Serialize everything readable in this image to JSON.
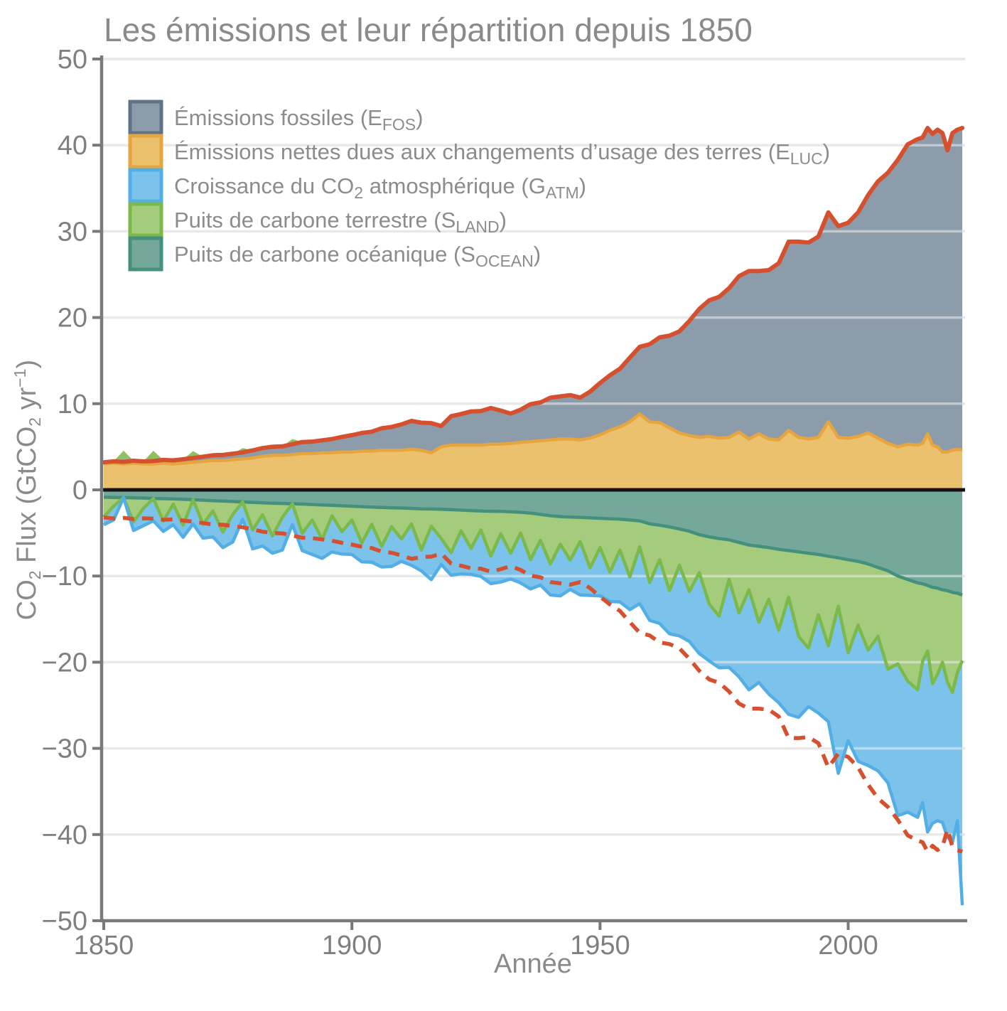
{
  "figure": {
    "background": "#ffffff"
  },
  "chart_data": {
    "type": "area",
    "title": "Les émissions et leur répartition depuis 1850",
    "xlabel": "Année",
    "ylabel_segments": [
      {
        "t": "CO"
      },
      {
        "sub": "2"
      },
      {
        "t": " Flux (GtCO"
      },
      {
        "sub": "2"
      },
      {
        "t": " yr"
      },
      {
        "sup": "−1"
      },
      {
        "t": ")"
      }
    ],
    "x_ticks": [
      {
        "v": 1850,
        "label": "1850"
      },
      {
        "v": 1900,
        "label": "1900"
      },
      {
        "v": 1950,
        "label": "1950"
      },
      {
        "v": 2000,
        "label": "2000"
      }
    ],
    "y_ticks": [
      {
        "v": 50,
        "label": "50"
      },
      {
        "v": 40,
        "label": "40"
      },
      {
        "v": 30,
        "label": "30"
      },
      {
        "v": 20,
        "label": "20"
      },
      {
        "v": 10,
        "label": "10"
      },
      {
        "v": 0,
        "label": "0"
      },
      {
        "v": -10,
        "label": "−10"
      },
      {
        "v": -20,
        "label": "−20"
      },
      {
        "v": -30,
        "label": "−30"
      },
      {
        "v": -40,
        "label": "−40"
      },
      {
        "v": -50,
        "label": "−50"
      }
    ],
    "xlim": [
      1850,
      2023
    ],
    "ylim": [
      -50,
      50
    ],
    "grid": "horizontal-major",
    "legend_position": "inside-top-left",
    "units": "GtCO2 yr-1",
    "stacking": "emissions above zero (E_LUC then E_FOS); partition below zero (S_OCEAN then S_LAND then G_ATM); negative sink/growth years flipped above the total line",
    "derived_lines": {
      "solid_top": "e_fos + e_luc",
      "dashed_bottom": "-(e_fos + e_luc)",
      "color": "#d5502e"
    },
    "colors": {
      "grid": "#e5e5e5",
      "grid_overlay": "rgba(236,236,236,0.55)",
      "axis": "#7a7a7a",
      "title_text": "#8a8a8a",
      "tick_text": "#7f7f7f",
      "zero_line": "#141414",
      "total_line": "#d5502e"
    },
    "years": [
      1850,
      1852,
      1854,
      1856,
      1858,
      1860,
      1862,
      1864,
      1866,
      1868,
      1870,
      1872,
      1874,
      1876,
      1878,
      1880,
      1882,
      1884,
      1886,
      1888,
      1890,
      1892,
      1894,
      1896,
      1898,
      1900,
      1902,
      1904,
      1906,
      1908,
      1910,
      1912,
      1914,
      1916,
      1918,
      1920,
      1922,
      1924,
      1926,
      1928,
      1930,
      1932,
      1934,
      1936,
      1938,
      1940,
      1942,
      1944,
      1946,
      1948,
      1950,
      1952,
      1954,
      1956,
      1958,
      1960,
      1962,
      1964,
      1966,
      1968,
      1970,
      1972,
      1974,
      1976,
      1978,
      1980,
      1982,
      1984,
      1986,
      1988,
      1990,
      1992,
      1994,
      1996,
      1998,
      2000,
      2002,
      2004,
      2006,
      2008,
      2010,
      2012,
      2014,
      2015,
      2016,
      2017,
      2018,
      2019,
      2020,
      2021,
      2022,
      2023
    ],
    "series": [
      {
        "id": "e_fos",
        "name": "Émissions fossiles",
        "symbol": "E",
        "subscript": "FOS",
        "side": "above",
        "fill": "#8d9caa",
        "border": "#5f7388",
        "values": [
          0.2,
          0.22,
          0.25,
          0.28,
          0.3,
          0.34,
          0.37,
          0.42,
          0.46,
          0.5,
          0.55,
          0.62,
          0.65,
          0.7,
          0.75,
          0.88,
          0.95,
          1.0,
          1.05,
          1.2,
          1.35,
          1.4,
          1.45,
          1.6,
          1.75,
          1.95,
          2.1,
          2.25,
          2.55,
          2.7,
          3.0,
          3.3,
          3.2,
          3.45,
          2.4,
          3.35,
          3.6,
          3.9,
          3.95,
          4.2,
          3.9,
          3.45,
          3.8,
          4.35,
          4.45,
          4.9,
          4.95,
          5.1,
          4.9,
          5.4,
          6.0,
          6.4,
          6.75,
          7.45,
          7.8,
          9.0,
          9.9,
          10.7,
          11.8,
          13.3,
          14.9,
          15.8,
          16.4,
          17.3,
          18.1,
          19.5,
          18.9,
          19.6,
          20.5,
          21.9,
          22.7,
          22.8,
          23.3,
          24.3,
          24.5,
          25.0,
          26.0,
          27.6,
          29.8,
          31.4,
          33.3,
          34.8,
          35.5,
          35.5,
          35.5,
          36.1,
          36.8,
          37.0,
          35.0,
          36.8,
          37.1,
          37.4
        ]
      },
      {
        "id": "e_luc",
        "name": "Émissions nettes dues aux changements d’usage des terres",
        "symbol": "E",
        "subscript": "LUC",
        "side": "above",
        "fill": "#ecc16e",
        "border": "#e6a53e",
        "values": [
          3.0,
          3.1,
          3.0,
          3.1,
          3.0,
          3.0,
          3.1,
          3.0,
          3.1,
          3.2,
          3.3,
          3.4,
          3.4,
          3.5,
          3.6,
          3.7,
          3.9,
          4.0,
          4.0,
          4.1,
          4.2,
          4.2,
          4.3,
          4.3,
          4.4,
          4.4,
          4.5,
          4.5,
          4.6,
          4.6,
          4.6,
          4.7,
          4.6,
          4.3,
          5.0,
          5.2,
          5.2,
          5.2,
          5.2,
          5.3,
          5.3,
          5.4,
          5.5,
          5.6,
          5.7,
          5.8,
          5.9,
          5.9,
          5.8,
          6.0,
          6.4,
          6.9,
          7.3,
          7.9,
          8.8,
          7.9,
          7.8,
          7.2,
          6.6,
          6.3,
          6.1,
          6.2,
          6.0,
          6.1,
          6.7,
          5.9,
          6.5,
          5.9,
          5.8,
          6.9,
          6.1,
          5.9,
          6.1,
          7.9,
          6.1,
          6.0,
          6.2,
          6.6,
          6.0,
          5.4,
          5.0,
          5.3,
          5.2,
          5.4,
          6.5,
          5.2,
          5.0,
          4.4,
          4.4,
          4.6,
          4.7,
          4.6
        ]
      },
      {
        "id": "g_atm",
        "name": "Croissance du CO2 atmosphérique",
        "symbol": "G",
        "subscript": "ATM",
        "side": "below",
        "fill": "#7cc3eb",
        "border": "#53aee5",
        "values": [
          0.9,
          1.6,
          -0.4,
          1.0,
          2.0,
          2.6,
          1.2,
          2.4,
          1.4,
          2.8,
          1.6,
          3.0,
          1.8,
          3.2,
          2.0,
          2.2,
          3.6,
          2.0,
          3.8,
          2.4,
          2.0,
          4.0,
          2.2,
          4.2,
          2.6,
          4.0,
          2.2,
          4.4,
          2.4,
          4.6,
          2.6,
          4.8,
          2.4,
          6.2,
          3.0,
          2.6,
          5.0,
          3.0,
          5.4,
          3.2,
          5.6,
          3.0,
          5.8,
          3.4,
          5.2,
          3.6,
          6.0,
          3.4,
          6.2,
          3.2,
          5.6,
          3.4,
          6.0,
          3.8,
          6.6,
          4.4,
          7.4,
          5.0,
          8.2,
          5.8,
          9.4,
          6.6,
          6.0,
          10.2,
          7.4,
          11.6,
          7.0,
          11.0,
          8.4,
          13.6,
          9.4,
          6.8,
          11.4,
          8.8,
          19.4,
          10.2,
          15.8,
          13.4,
          15.6,
          13.2,
          17.6,
          15.2,
          14.8,
          16.4,
          21.0,
          16.2,
          17.0,
          18.6,
          18.0,
          17.4,
          17.2,
          28.4
        ]
      },
      {
        "id": "s_land",
        "name": "Puits de carbone terrestre",
        "symbol": "S",
        "subscript": "LAND",
        "side": "below",
        "fill": "#a5cb7d",
        "border": "#7cb94b",
        "values": [
          2.3,
          1.0,
          -0.9,
          2.8,
          1.2,
          -1.2,
          2.6,
          0.6,
          3.0,
          -0.8,
          2.8,
          1.2,
          3.6,
          1.5,
          -0.5,
          3.2,
          1.4,
          3.8,
          1.6,
          -0.6,
          3.4,
          1.8,
          4.0,
          1.2,
          3.0,
          1.6,
          4.2,
          2.0,
          4.5,
          2.2,
          3.6,
          1.8,
          4.8,
          2.0,
          3.4,
          5.0,
          2.4,
          4.4,
          2.2,
          5.2,
          2.6,
          4.8,
          2.4,
          5.4,
          3.0,
          5.6,
          3.2,
          5.0,
          2.8,
          5.8,
          3.4,
          6.2,
          3.6,
          6.6,
          3.0,
          6.8,
          4.0,
          7.4,
          4.2,
          7.0,
          4.4,
          7.8,
          9.0,
          4.6,
          8.2,
          5.2,
          8.8,
          6.0,
          9.4,
          5.4,
          9.8,
          11.0,
          7.0,
          10.4,
          5.6,
          10.8,
          7.4,
          10.0,
          8.0,
          11.4,
          10.2,
          11.8,
          12.4,
          9.0,
          7.6,
          11.2,
          10.0,
          8.4,
          10.6,
          11.6,
          9.2,
          7.6
        ]
      },
      {
        "id": "s_ocean",
        "name": "Puits de carbone océanique",
        "symbol": "S",
        "subscript": "OCEAN",
        "side": "below",
        "fill": "#73a89a",
        "border": "#45907d",
        "values": [
          0.85,
          0.88,
          0.9,
          0.92,
          0.95,
          1.0,
          1.02,
          1.05,
          1.1,
          1.15,
          1.2,
          1.25,
          1.3,
          1.35,
          1.4,
          1.45,
          1.5,
          1.55,
          1.58,
          1.62,
          1.65,
          1.7,
          1.75,
          1.8,
          1.85,
          1.9,
          1.95,
          2.0,
          2.05,
          2.08,
          2.1,
          2.15,
          2.2,
          2.22,
          2.25,
          2.3,
          2.35,
          2.4,
          2.45,
          2.48,
          2.5,
          2.55,
          2.6,
          2.7,
          2.85,
          3.0,
          3.1,
          3.15,
          3.2,
          3.25,
          3.3,
          3.35,
          3.4,
          3.5,
          3.6,
          3.95,
          4.1,
          4.3,
          4.55,
          4.8,
          5.2,
          5.45,
          5.65,
          5.8,
          6.1,
          6.4,
          6.55,
          6.7,
          6.9,
          7.05,
          7.2,
          7.35,
          7.5,
          7.7,
          7.9,
          8.1,
          8.3,
          8.6,
          9.0,
          9.4,
          10.0,
          10.4,
          10.8,
          10.9,
          11.1,
          11.3,
          11.4,
          11.6,
          11.7,
          11.9,
          12.0,
          12.2
        ]
      }
    ],
    "legend": [
      {
        "series": "e_fos",
        "segments": [
          {
            "t": "Émissions fossiles (E"
          },
          {
            "sub": "FOS"
          },
          {
            "t": ")"
          }
        ]
      },
      {
        "series": "e_luc",
        "segments": [
          {
            "t": "Émissions nettes dues aux changements d’usage des terres (E"
          },
          {
            "sub": "LUC"
          },
          {
            "t": ")"
          }
        ]
      },
      {
        "series": "g_atm",
        "segments": [
          {
            "t": "Croissance du CO"
          },
          {
            "sub": "2"
          },
          {
            "t": " atmosphérique (G"
          },
          {
            "sub": "ATM"
          },
          {
            "t": ")"
          }
        ]
      },
      {
        "series": "s_land",
        "segments": [
          {
            "t": "Puits de carbone terrestre (S"
          },
          {
            "sub": "LAND"
          },
          {
            "t": ")"
          }
        ]
      },
      {
        "series": "s_ocean",
        "segments": [
          {
            "t": "Puits de carbone océanique (S"
          },
          {
            "sub": "OCEAN"
          },
          {
            "t": ")"
          }
        ]
      }
    ]
  }
}
